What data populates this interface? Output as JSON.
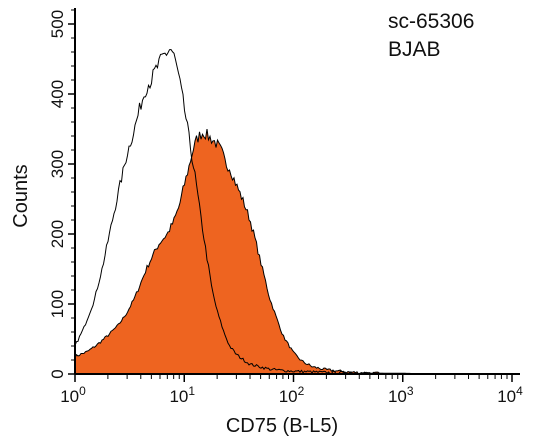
{
  "chart_data": {
    "type": "area",
    "xlabel": "CD75 (B-L5)",
    "ylabel": "Counts",
    "x_scale": "log",
    "xlim": [
      1,
      10000
    ],
    "ylim": [
      0,
      520
    ],
    "x_ticks": [
      {
        "value": 1,
        "base": "10",
        "exp": "0"
      },
      {
        "value": 10,
        "base": "10",
        "exp": "1"
      },
      {
        "value": 100,
        "base": "10",
        "exp": "2"
      },
      {
        "value": 1000,
        "base": "10",
        "exp": "3"
      },
      {
        "value": 10000,
        "base": "10",
        "exp": "4"
      }
    ],
    "y_ticks": [
      0,
      100,
      200,
      300,
      400,
      500
    ],
    "grid": false,
    "annotations": [
      "sc-65306",
      "BJAB"
    ],
    "series": [
      {
        "style": "outline",
        "color": "#000000",
        "x": [
          1,
          1.2,
          1.5,
          1.8,
          2.1,
          2.5,
          3,
          3.5,
          4,
          4.5,
          5,
          5.5,
          6,
          6.5,
          7,
          7.5,
          8,
          8.5,
          9.5,
          10.5,
          11.5,
          12.5,
          14,
          16,
          18,
          20,
          23,
          26,
          30,
          35,
          40,
          50,
          60,
          80,
          100,
          150,
          200,
          300,
          500,
          1000,
          2000,
          5000,
          10000
        ],
        "y": [
          40,
          65,
          105,
          155,
          205,
          260,
          315,
          350,
          385,
          410,
          420,
          435,
          445,
          455,
          460,
          465,
          455,
          440,
          400,
          360,
          320,
          285,
          230,
          170,
          120,
          90,
          60,
          40,
          28,
          20,
          14,
          10,
          7,
          5,
          4,
          3,
          2,
          2,
          1,
          1,
          0,
          0,
          0
        ]
      },
      {
        "style": "filled",
        "color": "#ee6420",
        "x": [
          1,
          1.3,
          1.6,
          2,
          2.5,
          3,
          3.5,
          4,
          4.5,
          5,
          5.5,
          6,
          7,
          8,
          9,
          10,
          11,
          12,
          13,
          14,
          15,
          16,
          17,
          18,
          20,
          22,
          24,
          26,
          28,
          30,
          33,
          36,
          40,
          45,
          50,
          55,
          60,
          70,
          80,
          100,
          120,
          150,
          200,
          300,
          400,
          600,
          1000,
          2000,
          5000,
          10000
        ],
        "y": [
          25,
          32,
          42,
          55,
          70,
          88,
          108,
          130,
          150,
          165,
          178,
          188,
          200,
          218,
          240,
          270,
          295,
          320,
          335,
          342,
          345,
          342,
          338,
          335,
          328,
          318,
          300,
          295,
          282,
          270,
          255,
          240,
          220,
          190,
          160,
          135,
          110,
          80,
          55,
          30,
          18,
          10,
          6,
          3,
          2,
          1,
          0,
          0,
          0,
          0
        ]
      }
    ]
  }
}
